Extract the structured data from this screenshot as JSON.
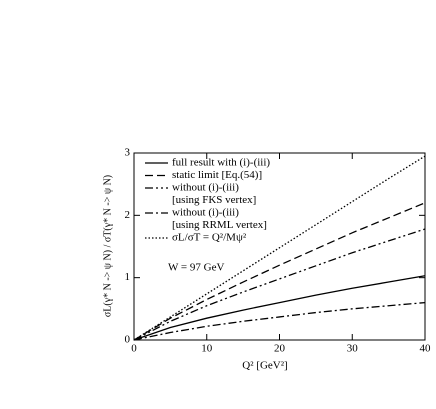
{
  "chart_data": {
    "type": "line",
    "xlabel": "Q² [GeV²]",
    "ylabel": "σL(γ* N -> ψ N) / σT(γ* N -> ψ N)",
    "annotation": "W = 97 GeV",
    "x": [
      0,
      5,
      10,
      15,
      20,
      25,
      30,
      35,
      40
    ],
    "series": [
      {
        "name": "full result with (i)-(iii)",
        "color": "#000000",
        "dash": "solid",
        "values": [
          0,
          0.2,
          0.35,
          0.48,
          0.6,
          0.72,
          0.83,
          0.93,
          1.03
        ]
      },
      {
        "name": "static limit [Eq.(54)]",
        "color": "#000000",
        "dash": "dashed",
        "values": [
          0,
          0.35,
          0.65,
          0.93,
          1.2,
          1.46,
          1.72,
          1.96,
          2.2
        ]
      },
      {
        "name": "without (i)-(iii)",
        "note": "[using FKS vertex]",
        "color": "#000000",
        "dash": "dashdotdot",
        "values": [
          0,
          0.3,
          0.55,
          0.77,
          0.98,
          1.19,
          1.4,
          1.59,
          1.78
        ]
      },
      {
        "name": "without (i)-(iii)",
        "note": "[using RRML vertex]",
        "color": "#000000",
        "dash": "dashdot",
        "values": [
          0,
          0.12,
          0.22,
          0.3,
          0.37,
          0.44,
          0.5,
          0.55,
          0.6
        ]
      },
      {
        "name": "σL/σT = Q²/Mψ²",
        "color": "#000000",
        "dash": "dotted",
        "values": [
          0,
          0.37,
          0.74,
          1.11,
          1.48,
          1.85,
          2.22,
          2.59,
          2.95
        ]
      }
    ],
    "xlim": [
      0,
      40
    ],
    "xticks": [
      0,
      10,
      20,
      30,
      40
    ],
    "ylim": [
      0,
      3
    ],
    "yticks": [
      0,
      1,
      2,
      3
    ],
    "grid": false
  }
}
